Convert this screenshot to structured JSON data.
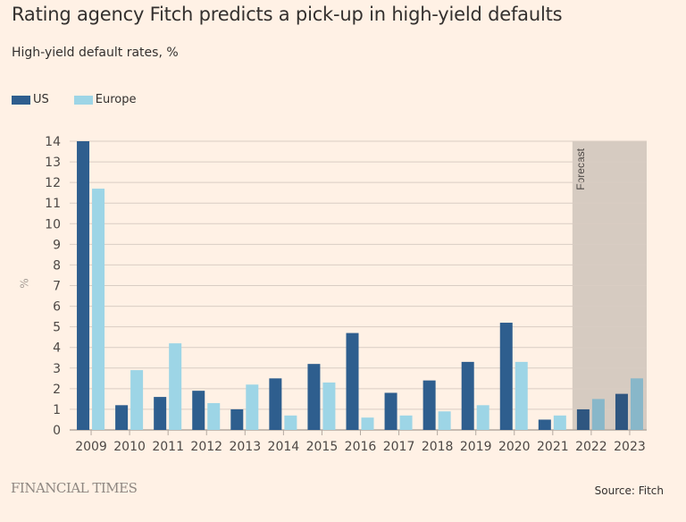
{
  "header": {
    "title": "Rating agency Fitch predicts a pick-up in high-yield defaults",
    "subtitle": "High-yield default rates, %"
  },
  "legend": [
    {
      "label": "US",
      "color": "#2e5e8e"
    },
    {
      "label": "Europe",
      "color": "#9dd5e6"
    }
  ],
  "footer": {
    "brand": "FINANCIAL TIMES",
    "source": "Source: Fitch"
  },
  "chart_data": {
    "type": "bar",
    "title": "Rating agency Fitch predicts a pick-up in high-yield defaults",
    "subtitle": "High-yield default rates, %",
    "xlabel": "",
    "ylabel": "%",
    "ylim": [
      0,
      14
    ],
    "yticks": [
      0,
      1,
      2,
      3,
      4,
      5,
      6,
      7,
      8,
      9,
      10,
      11,
      12,
      13,
      14
    ],
    "grid": true,
    "legend_position": "top-left",
    "categories": [
      "2009",
      "2010",
      "2011",
      "2012",
      "2013",
      "2014",
      "2015",
      "2016",
      "2017",
      "2018",
      "2019",
      "2020",
      "2021",
      "2022",
      "2023"
    ],
    "series": [
      {
        "name": "US",
        "color": "#2e5e8e",
        "forecast_color": "#2f5680",
        "values": [
          14.0,
          1.2,
          1.6,
          1.9,
          1.0,
          2.5,
          3.2,
          4.7,
          1.8,
          2.4,
          3.3,
          5.2,
          0.5,
          1.0,
          1.75
        ]
      },
      {
        "name": "Europe",
        "color": "#9dd5e6",
        "forecast_color": "#88b7c9",
        "values": [
          11.7,
          2.9,
          4.2,
          1.3,
          2.2,
          0.7,
          2.3,
          0.6,
          0.7,
          0.9,
          1.2,
          3.3,
          0.7,
          1.5,
          2.5
        ]
      }
    ],
    "annotations": [
      {
        "type": "shaded-region",
        "label": "Forecast",
        "from": "2022",
        "to": "2023",
        "color": "#d6cbc1"
      }
    ]
  }
}
